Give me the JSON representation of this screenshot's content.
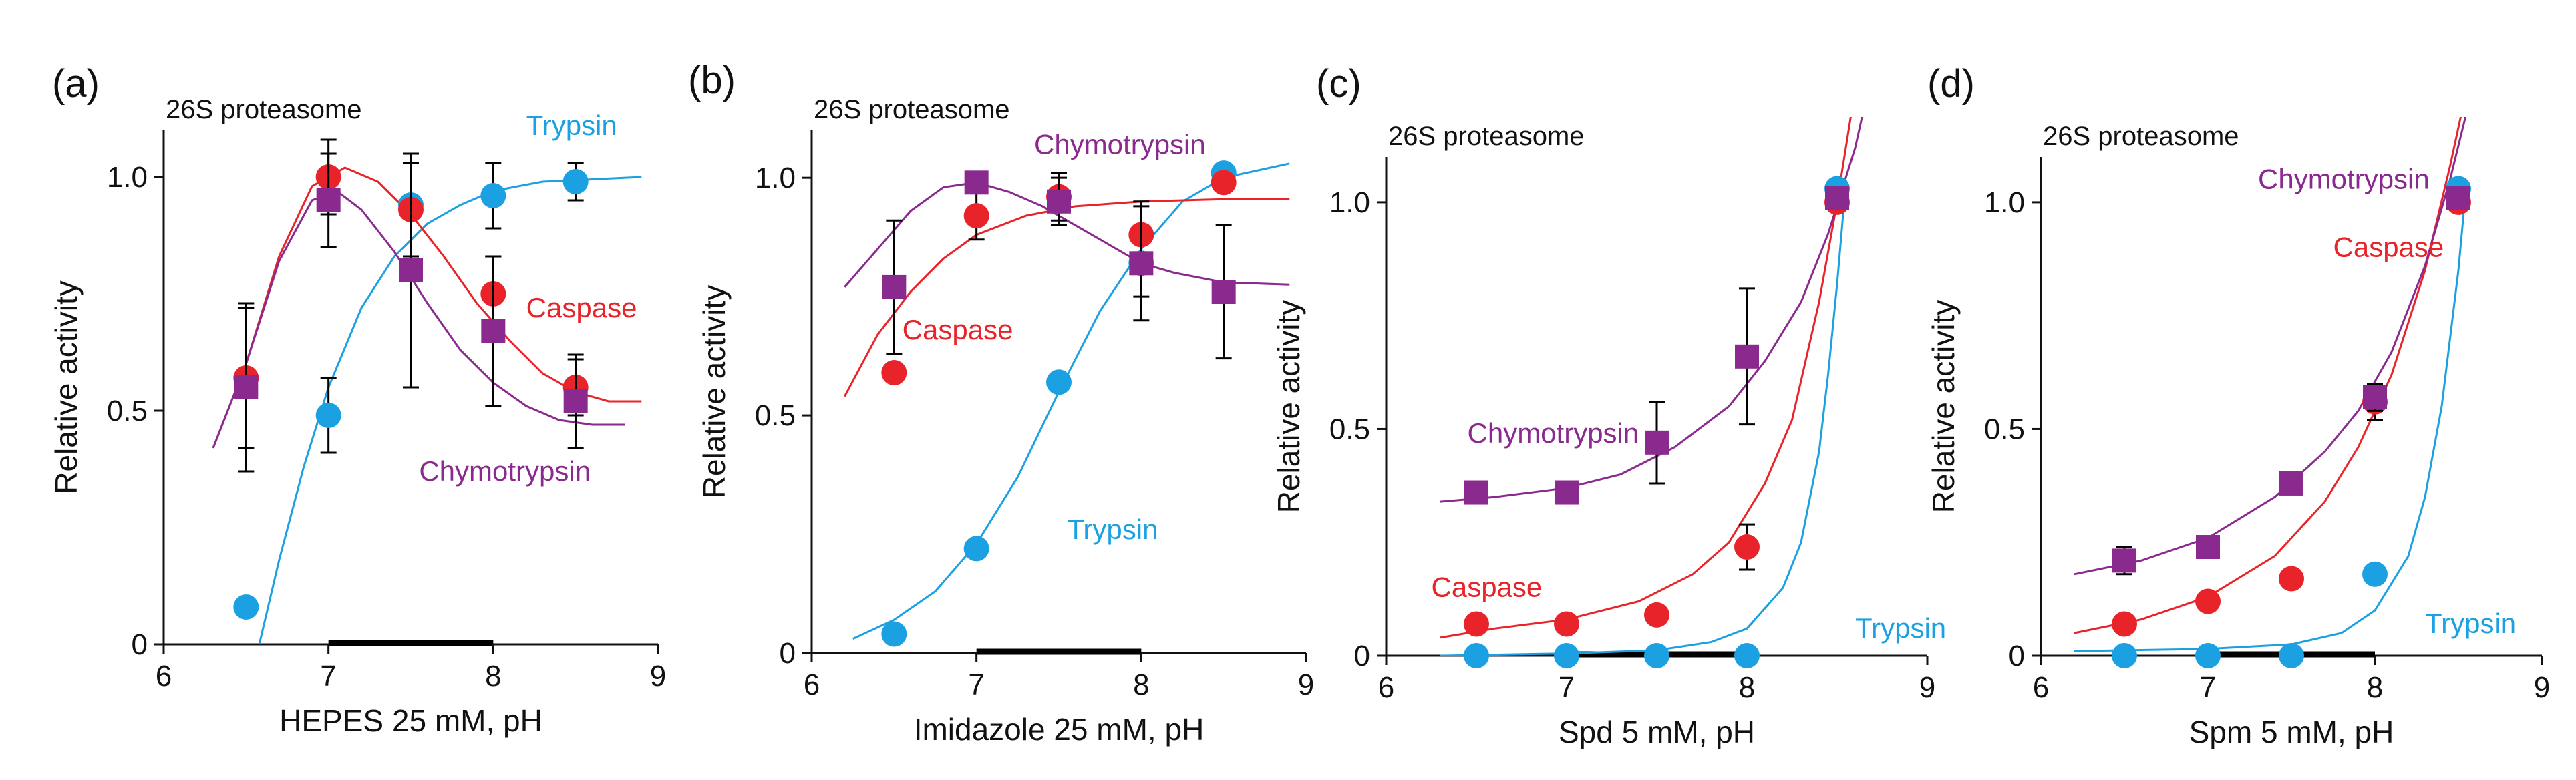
{
  "colors": {
    "trypsin": "#1ba1e2",
    "caspase": "#e8242a",
    "chymotrypsin": "#8b2a8e",
    "axis": "#111111"
  },
  "chart_data": [
    {
      "type": "scatter",
      "panel_label": "(a)",
      "title": "26S proteasome",
      "xlabel": "HEPES 25 mM, pH",
      "ylabel": "Relative activity",
      "xlim": [
        6,
        9
      ],
      "ylim": [
        0,
        1.1
      ],
      "xticks": [
        6,
        7,
        8,
        9
      ],
      "yticks": [
        0,
        0.5,
        1.0
      ],
      "ytick_labels": [
        "0",
        "0.5",
        "1.0"
      ],
      "buffer_range": [
        7.0,
        8.0
      ],
      "series": [
        {
          "name": "Trypsin",
          "key": "trypsin",
          "marker": "circle",
          "label": "Trypsin",
          "x": [
            6.5,
            7.0,
            7.5,
            8.0,
            8.5
          ],
          "y": [
            0.08,
            0.49,
            0.94,
            0.96,
            0.99
          ],
          "err": [
            0,
            0.08,
            0,
            0.07,
            0.04
          ],
          "curve": [
            [
              6.58,
              0.0
            ],
            [
              6.7,
              0.18
            ],
            [
              6.85,
              0.38
            ],
            [
              7.0,
              0.55
            ],
            [
              7.2,
              0.72
            ],
            [
              7.4,
              0.83
            ],
            [
              7.6,
              0.9
            ],
            [
              7.8,
              0.94
            ],
            [
              8.0,
              0.97
            ],
            [
              8.3,
              0.99
            ],
            [
              8.9,
              1.0
            ]
          ]
        },
        {
          "name": "Caspase",
          "key": "caspase",
          "marker": "circle",
          "label": "Caspase",
          "x": [
            6.5,
            7.0,
            7.5,
            8.0,
            8.5
          ],
          "y": [
            0.57,
            1.0,
            0.93,
            0.75,
            0.55
          ],
          "err": [
            0.15,
            0.08,
            0.1,
            0.08,
            0.06
          ],
          "curve": [
            [
              6.3,
              0.42
            ],
            [
              6.5,
              0.6
            ],
            [
              6.7,
              0.83
            ],
            [
              6.9,
              0.98
            ],
            [
              7.1,
              1.02
            ],
            [
              7.3,
              0.99
            ],
            [
              7.5,
              0.92
            ],
            [
              7.7,
              0.83
            ],
            [
              7.9,
              0.73
            ],
            [
              8.1,
              0.65
            ],
            [
              8.3,
              0.58
            ],
            [
              8.5,
              0.54
            ],
            [
              8.7,
              0.52
            ],
            [
              8.9,
              0.52
            ]
          ]
        },
        {
          "name": "Chymotrypsin",
          "key": "chymotrypsin",
          "marker": "square",
          "label": "Chymotrypsin",
          "x": [
            6.5,
            7.0,
            7.5,
            8.0,
            8.5
          ],
          "y": [
            0.55,
            0.95,
            0.8,
            0.67,
            0.52
          ],
          "err": [
            0.18,
            0.1,
            0.25,
            0.16,
            0.1
          ],
          "curve": [
            [
              6.3,
              0.42
            ],
            [
              6.5,
              0.6
            ],
            [
              6.7,
              0.82
            ],
            [
              6.9,
              0.95
            ],
            [
              7.05,
              0.97
            ],
            [
              7.2,
              0.93
            ],
            [
              7.4,
              0.84
            ],
            [
              7.6,
              0.73
            ],
            [
              7.8,
              0.63
            ],
            [
              8.0,
              0.56
            ],
            [
              8.2,
              0.51
            ],
            [
              8.4,
              0.48
            ],
            [
              8.6,
              0.47
            ],
            [
              8.8,
              0.47
            ]
          ]
        }
      ],
      "annotations": [
        {
          "text": "Trypsin",
          "key": "trypsin",
          "x": 8.2,
          "y": 1.09
        },
        {
          "text": "Caspase",
          "key": "caspase",
          "x": 8.2,
          "y": 0.7
        },
        {
          "text": "Chymotrypsin",
          "key": "chymotrypsin",
          "x": 7.55,
          "y": 0.35
        }
      ]
    },
    {
      "type": "scatter",
      "panel_label": "(b)",
      "title": "26S proteasome",
      "xlabel": "Imidazole 25 mM, pH",
      "ylabel": "Relative activity",
      "xlim": [
        6,
        9
      ],
      "ylim": [
        0,
        1.1
      ],
      "xticks": [
        6,
        7,
        8,
        9
      ],
      "yticks": [
        0,
        0.5,
        1.0
      ],
      "ytick_labels": [
        "0",
        "0.5",
        "1.0"
      ],
      "buffer_range": [
        7.0,
        8.0
      ],
      "series": [
        {
          "name": "Trypsin",
          "key": "trypsin",
          "marker": "circle",
          "label": "Trypsin",
          "x": [
            6.5,
            7.0,
            7.5,
            8.0,
            8.5
          ],
          "y": [
            0.04,
            0.22,
            0.57,
            0.82,
            1.01
          ],
          "err": [
            0,
            0,
            0,
            0.07,
            0
          ],
          "curve": [
            [
              6.25,
              0.03
            ],
            [
              6.5,
              0.07
            ],
            [
              6.75,
              0.13
            ],
            [
              7.0,
              0.23
            ],
            [
              7.25,
              0.37
            ],
            [
              7.5,
              0.55
            ],
            [
              7.75,
              0.72
            ],
            [
              8.0,
              0.85
            ],
            [
              8.25,
              0.95
            ],
            [
              8.5,
              1.0
            ],
            [
              8.9,
              1.03
            ]
          ]
        },
        {
          "name": "Caspase",
          "key": "caspase",
          "marker": "circle",
          "label": "Caspase",
          "x": [
            6.5,
            7.0,
            7.5,
            8.0,
            8.5
          ],
          "y": [
            0.59,
            0.92,
            0.96,
            0.88,
            0.99
          ],
          "err": [
            0,
            0.05,
            0.05,
            0.07,
            0
          ],
          "curve": [
            [
              6.2,
              0.54
            ],
            [
              6.4,
              0.67
            ],
            [
              6.6,
              0.76
            ],
            [
              6.8,
              0.83
            ],
            [
              7.0,
              0.88
            ],
            [
              7.3,
              0.92
            ],
            [
              7.6,
              0.94
            ],
            [
              8.0,
              0.95
            ],
            [
              8.5,
              0.955
            ],
            [
              8.9,
              0.955
            ]
          ]
        },
        {
          "name": "Chymotrypsin",
          "key": "chymotrypsin",
          "marker": "square",
          "label": "Chymotrypsin",
          "x": [
            6.5,
            7.0,
            7.5,
            8.0,
            8.5
          ],
          "y": [
            0.77,
            0.99,
            0.95,
            0.82,
            0.76
          ],
          "err": [
            0.14,
            0,
            0.05,
            0.12,
            0.14
          ],
          "curve": [
            [
              6.2,
              0.77
            ],
            [
              6.4,
              0.85
            ],
            [
              6.6,
              0.93
            ],
            [
              6.8,
              0.98
            ],
            [
              7.0,
              0.99
            ],
            [
              7.2,
              0.97
            ],
            [
              7.4,
              0.94
            ],
            [
              7.6,
              0.9
            ],
            [
              7.8,
              0.86
            ],
            [
              8.0,
              0.82
            ],
            [
              8.2,
              0.8
            ],
            [
              8.5,
              0.78
            ],
            [
              8.9,
              0.775
            ]
          ]
        }
      ],
      "annotations": [
        {
          "text": "Chymotrypsin",
          "key": "chymotrypsin",
          "x": 7.35,
          "y": 1.05
        },
        {
          "text": "Caspase",
          "key": "caspase",
          "x": 6.55,
          "y": 0.66
        },
        {
          "text": "Trypsin",
          "key": "trypsin",
          "x": 7.55,
          "y": 0.24
        }
      ]
    },
    {
      "type": "scatter",
      "panel_label": "(c)",
      "title": "26S proteasome",
      "xlabel": "Spd 5 mM, pH",
      "ylabel": "Relative activity",
      "xlim": [
        6,
        9
      ],
      "ylim": [
        0,
        1.1
      ],
      "xticks": [
        6,
        7,
        8,
        9
      ],
      "yticks": [
        0,
        0.5,
        1.0
      ],
      "ytick_labels": [
        "0",
        "0.5",
        "1.0"
      ],
      "buffer_range": [
        7.0,
        8.0
      ],
      "series": [
        {
          "name": "Trypsin",
          "key": "trypsin",
          "marker": "circle",
          "label": "Trypsin",
          "x": [
            6.5,
            7.0,
            7.5,
            8.0,
            8.5
          ],
          "y": [
            0.0,
            0.0,
            0.0,
            0.0,
            1.03
          ],
          "err": [
            0,
            0,
            0,
            0,
            0
          ],
          "curve": [
            [
              6.3,
              0.0
            ],
            [
              7.0,
              0.005
            ],
            [
              7.5,
              0.012
            ],
            [
              7.8,
              0.03
            ],
            [
              8.0,
              0.06
            ],
            [
              8.2,
              0.15
            ],
            [
              8.3,
              0.25
            ],
            [
              8.4,
              0.45
            ],
            [
              8.45,
              0.62
            ],
            [
              8.5,
              0.82
            ],
            [
              8.55,
              1.05
            ]
          ]
        },
        {
          "name": "Caspase",
          "key": "caspase",
          "marker": "circle",
          "label": "Caspase",
          "x": [
            6.5,
            7.0,
            7.5,
            8.0,
            8.5
          ],
          "y": [
            0.07,
            0.07,
            0.09,
            0.24,
            1.0
          ],
          "err": [
            0,
            0,
            0,
            0.05,
            0
          ],
          "curve": [
            [
              6.3,
              0.04
            ],
            [
              6.6,
              0.06
            ],
            [
              7.0,
              0.08
            ],
            [
              7.4,
              0.12
            ],
            [
              7.7,
              0.18
            ],
            [
              7.9,
              0.25
            ],
            [
              8.1,
              0.38
            ],
            [
              8.25,
              0.52
            ],
            [
              8.4,
              0.78
            ],
            [
              8.5,
              1.0
            ],
            [
              8.58,
              1.2
            ]
          ]
        },
        {
          "name": "Chymotrypsin",
          "key": "chymotrypsin",
          "marker": "square",
          "label": "Chymotrypsin",
          "x": [
            6.5,
            7.0,
            7.5,
            8.0,
            8.5
          ],
          "y": [
            0.36,
            0.36,
            0.47,
            0.66,
            1.01
          ],
          "err": [
            0,
            0.02,
            0.09,
            0.15,
            0
          ],
          "curve": [
            [
              6.3,
              0.34
            ],
            [
              6.6,
              0.35
            ],
            [
              7.0,
              0.37
            ],
            [
              7.3,
              0.4
            ],
            [
              7.6,
              0.46
            ],
            [
              7.9,
              0.55
            ],
            [
              8.1,
              0.65
            ],
            [
              8.3,
              0.78
            ],
            [
              8.45,
              0.93
            ],
            [
              8.6,
              1.12
            ],
            [
              8.7,
              1.3
            ]
          ]
        }
      ],
      "annotations": [
        {
          "text": "Chymotrypsin",
          "key": "chymotrypsin",
          "x": 6.45,
          "y": 0.47
        },
        {
          "text": "Caspase",
          "key": "caspase",
          "x": 6.25,
          "y": 0.13
        },
        {
          "text": "Trypsin",
          "key": "trypsin",
          "x": 8.6,
          "y": 0.04
        }
      ]
    },
    {
      "type": "scatter",
      "panel_label": "(d)",
      "title": "26S proteasome",
      "xlabel": "Spm 5 mM, pH",
      "ylabel": "Relative activity",
      "xlim": [
        6,
        9
      ],
      "ylim": [
        0,
        1.1
      ],
      "xticks": [
        6,
        7,
        8,
        9
      ],
      "yticks": [
        0,
        0.5,
        1.0
      ],
      "ytick_labels": [
        "0",
        "0.5",
        "1.0"
      ],
      "buffer_range": [
        7.0,
        8.0
      ],
      "series": [
        {
          "name": "Trypsin",
          "key": "trypsin",
          "marker": "circle",
          "label": "Trypsin",
          "x": [
            6.5,
            7.0,
            7.5,
            8.0,
            8.5
          ],
          "y": [
            0.0,
            0.0,
            0.0,
            0.18,
            1.03
          ],
          "err": [
            0,
            0,
            0,
            0,
            0
          ],
          "curve": [
            [
              6.2,
              0.01
            ],
            [
              7.0,
              0.015
            ],
            [
              7.5,
              0.025
            ],
            [
              7.8,
              0.05
            ],
            [
              8.0,
              0.1
            ],
            [
              8.2,
              0.22
            ],
            [
              8.3,
              0.35
            ],
            [
              8.4,
              0.55
            ],
            [
              8.5,
              0.85
            ],
            [
              8.55,
              1.05
            ]
          ]
        },
        {
          "name": "Caspase",
          "key": "caspase",
          "marker": "circle",
          "label": "Caspase",
          "x": [
            6.5,
            7.0,
            7.5,
            8.0,
            8.5
          ],
          "y": [
            0.07,
            0.12,
            0.17,
            0.56,
            1.0
          ],
          "err": [
            0,
            0,
            0,
            0.04,
            0
          ],
          "curve": [
            [
              6.2,
              0.05
            ],
            [
              6.6,
              0.08
            ],
            [
              7.0,
              0.13
            ],
            [
              7.4,
              0.22
            ],
            [
              7.7,
              0.34
            ],
            [
              7.9,
              0.46
            ],
            [
              8.1,
              0.62
            ],
            [
              8.3,
              0.85
            ],
            [
              8.45,
              1.08
            ],
            [
              8.55,
              1.25
            ]
          ]
        },
        {
          "name": "Chymotrypsin",
          "key": "chymotrypsin",
          "marker": "square",
          "label": "Chymotrypsin",
          "x": [
            6.5,
            7.0,
            7.5,
            8.0,
            8.5
          ],
          "y": [
            0.21,
            0.24,
            0.38,
            0.57,
            1.01
          ],
          "err": [
            0.03,
            0,
            0,
            0.03,
            0
          ],
          "curve": [
            [
              6.2,
              0.18
            ],
            [
              6.6,
              0.21
            ],
            [
              7.0,
              0.26
            ],
            [
              7.4,
              0.35
            ],
            [
              7.7,
              0.45
            ],
            [
              7.9,
              0.54
            ],
            [
              8.1,
              0.67
            ],
            [
              8.3,
              0.86
            ],
            [
              8.45,
              1.05
            ],
            [
              8.55,
              1.2
            ]
          ]
        }
      ],
      "annotations": [
        {
          "text": "Chymotrypsin",
          "key": "chymotrypsin",
          "x": 7.3,
          "y": 1.03
        },
        {
          "text": "Caspase",
          "key": "caspase",
          "x": 7.75,
          "y": 0.88
        },
        {
          "text": "Trypsin",
          "key": "trypsin",
          "x": 8.3,
          "y": 0.05
        }
      ]
    }
  ]
}
